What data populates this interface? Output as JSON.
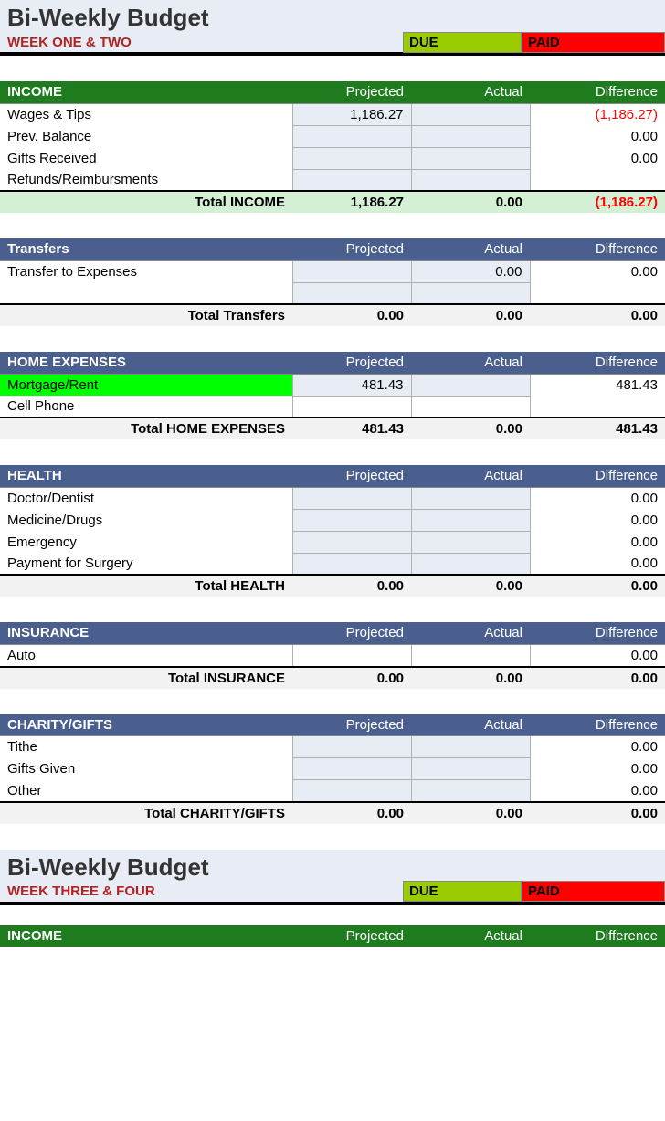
{
  "colors": {
    "title_bg": "#e8ecf4",
    "subtitle_text": "#b22222",
    "due_bg": "#99cc00",
    "paid_bg": "#ff0000",
    "hdr_green": "#1e7b1e",
    "hdr_blue": "#4a5f8e",
    "cell_bg": "#e8ecf4",
    "highlight_green": "#00ff00",
    "total_green_bg": "#d4f0d4",
    "total_grey_bg": "#f2f2f2",
    "negative": "#ff0000"
  },
  "labels": {
    "main_title": "Bi-Weekly Budget",
    "subtitle1": "WEEK ONE & TWO",
    "subtitle2": "WEEK THREE & FOUR",
    "due": "DUE",
    "paid": "PAID",
    "projected": "Projected",
    "actual": "Actual",
    "difference": "Difference"
  },
  "sections": {
    "income": {
      "header": "INCOME",
      "rows": [
        {
          "name": "Wages & Tips",
          "projected": "1,186.27",
          "actual": "",
          "diff": "(1,186.27)",
          "diff_neg": true
        },
        {
          "name": "Prev. Balance",
          "projected": "",
          "actual": "",
          "diff": "0.00"
        },
        {
          "name": "Gifts Received",
          "projected": "",
          "actual": "",
          "diff": "0.00"
        },
        {
          "name": "Refunds/Reimbursments",
          "projected": "",
          "actual": "",
          "diff": ""
        }
      ],
      "total": {
        "label": "Total INCOME",
        "projected": "1,186.27",
        "actual": "0.00",
        "diff": "(1,186.27)",
        "diff_neg": true
      }
    },
    "transfers": {
      "header": "Transfers",
      "rows": [
        {
          "name": "Transfer to Expenses",
          "projected": "",
          "actual": "0.00",
          "diff": "0.00"
        },
        {
          "name": "",
          "projected": "",
          "actual": "",
          "diff": ""
        }
      ],
      "total": {
        "label": "Total Transfers",
        "projected": "0.00",
        "actual": "0.00",
        "diff": "0.00"
      }
    },
    "home": {
      "header": "HOME EXPENSES",
      "rows": [
        {
          "name": "Mortgage/Rent",
          "projected": "481.43",
          "actual": "",
          "diff": "481.43",
          "highlight": true
        },
        {
          "name": "Cell Phone",
          "projected": "",
          "actual": "",
          "diff": "",
          "white": true
        }
      ],
      "total": {
        "label": "Total HOME EXPENSES",
        "projected": "481.43",
        "actual": "0.00",
        "diff": "481.43"
      }
    },
    "health": {
      "header": "HEALTH",
      "rows": [
        {
          "name": "Doctor/Dentist",
          "projected": "",
          "actual": "",
          "diff": "0.00"
        },
        {
          "name": "Medicine/Drugs",
          "projected": "",
          "actual": "",
          "diff": "0.00"
        },
        {
          "name": "Emergency",
          "projected": "",
          "actual": "",
          "diff": "0.00"
        },
        {
          "name": "Payment for Surgery",
          "projected": "",
          "actual": "",
          "diff": "0.00"
        }
      ],
      "total": {
        "label": "Total HEALTH",
        "projected": "0.00",
        "actual": "0.00",
        "diff": "0.00"
      }
    },
    "insurance": {
      "header": "INSURANCE",
      "rows": [
        {
          "name": "Auto",
          "projected": "",
          "actual": "",
          "diff": "0.00",
          "white": true
        }
      ],
      "total": {
        "label": "Total INSURANCE",
        "projected": "0.00",
        "actual": "0.00",
        "diff": "0.00"
      }
    },
    "charity": {
      "header": "CHARITY/GIFTS",
      "rows": [
        {
          "name": "Tithe",
          "projected": "",
          "actual": "",
          "diff": "0.00"
        },
        {
          "name": "Gifts Given",
          "projected": "",
          "actual": "",
          "diff": "0.00"
        },
        {
          "name": "Other",
          "projected": "",
          "actual": "",
          "diff": "0.00"
        }
      ],
      "total": {
        "label": "Total CHARITY/GIFTS",
        "projected": "0.00",
        "actual": "0.00",
        "diff": "0.00"
      }
    },
    "income2": {
      "header": "INCOME"
    }
  }
}
